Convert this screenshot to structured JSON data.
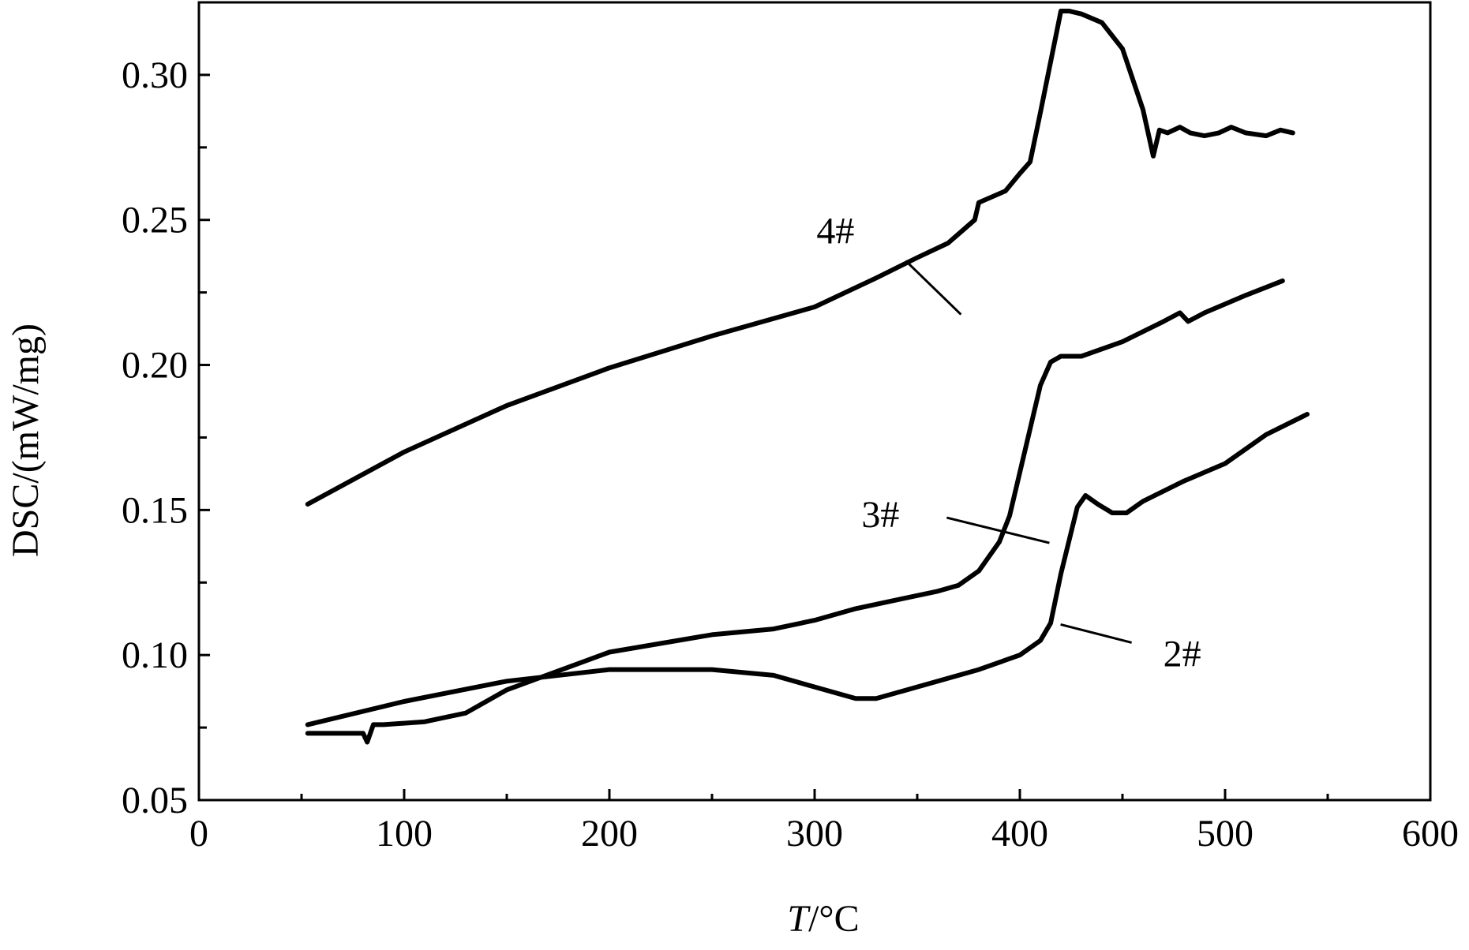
{
  "chart_data": {
    "type": "line",
    "xlabel_italic": "T",
    "xlabel_rest": "/°C",
    "ylabel": "DSC/(mW/mg)",
    "xlim": [
      0,
      600
    ],
    "ylim": [
      0.05,
      0.325
    ],
    "xticks": [
      0,
      100,
      200,
      300,
      400,
      500,
      600
    ],
    "yticks": [
      0.05,
      0.1,
      0.15,
      0.2,
      0.25,
      0.3
    ],
    "xtick_labels": [
      "0",
      "100",
      "200",
      "300",
      "400",
      "500",
      "600"
    ],
    "ytick_labels": [
      "0.05",
      "0.10",
      "0.15",
      "0.20",
      "0.25",
      "0.30"
    ],
    "grid": false,
    "series": [
      {
        "name": "4#",
        "x": [
          53,
          100,
          150,
          200,
          250,
          300,
          330,
          350,
          365,
          378,
          380,
          393,
          400,
          405,
          410,
          420,
          424,
          430,
          440,
          450,
          460,
          465,
          468,
          472,
          478,
          483,
          490,
          497,
          503,
          510,
          520,
          527,
          533
        ],
        "y": [
          0.152,
          0.17,
          0.186,
          0.199,
          0.21,
          0.22,
          0.23,
          0.237,
          0.242,
          0.25,
          0.256,
          0.26,
          0.266,
          0.27,
          0.287,
          0.322,
          0.322,
          0.321,
          0.318,
          0.309,
          0.288,
          0.272,
          0.281,
          0.28,
          0.282,
          0.28,
          0.279,
          0.28,
          0.282,
          0.28,
          0.279,
          0.281,
          0.28
        ],
        "label_x": 329,
        "label_y": 0.237
      },
      {
        "name": "3#",
        "x": [
          53,
          80,
          82,
          85,
          90,
          110,
          130,
          150,
          200,
          250,
          280,
          300,
          320,
          340,
          360,
          370,
          380,
          390,
          395,
          400,
          410,
          415,
          420,
          430,
          450,
          470,
          478,
          482,
          490,
          510,
          528
        ],
        "y": [
          0.073,
          0.073,
          0.07,
          0.076,
          0.076,
          0.077,
          0.08,
          0.088,
          0.101,
          0.107,
          0.109,
          0.112,
          0.116,
          0.119,
          0.122,
          0.124,
          0.129,
          0.139,
          0.148,
          0.163,
          0.193,
          0.201,
          0.203,
          0.203,
          0.208,
          0.215,
          0.218,
          0.215,
          0.218,
          0.224,
          0.229
        ],
        "label_x": 349,
        "label_y": 0.149
      },
      {
        "name": "2#",
        "x": [
          53,
          100,
          150,
          200,
          250,
          280,
          300,
          320,
          330,
          350,
          380,
          400,
          410,
          415,
          420,
          428,
          432,
          438,
          445,
          452,
          460,
          480,
          500,
          520,
          540
        ],
        "y": [
          0.076,
          0.084,
          0.091,
          0.095,
          0.095,
          0.093,
          0.089,
          0.085,
          0.085,
          0.089,
          0.095,
          0.1,
          0.105,
          0.111,
          0.128,
          0.151,
          0.155,
          0.152,
          0.149,
          0.149,
          0.153,
          0.16,
          0.166,
          0.176,
          0.183
        ],
        "label_x": 466,
        "label_y": 0.107
      }
    ]
  }
}
